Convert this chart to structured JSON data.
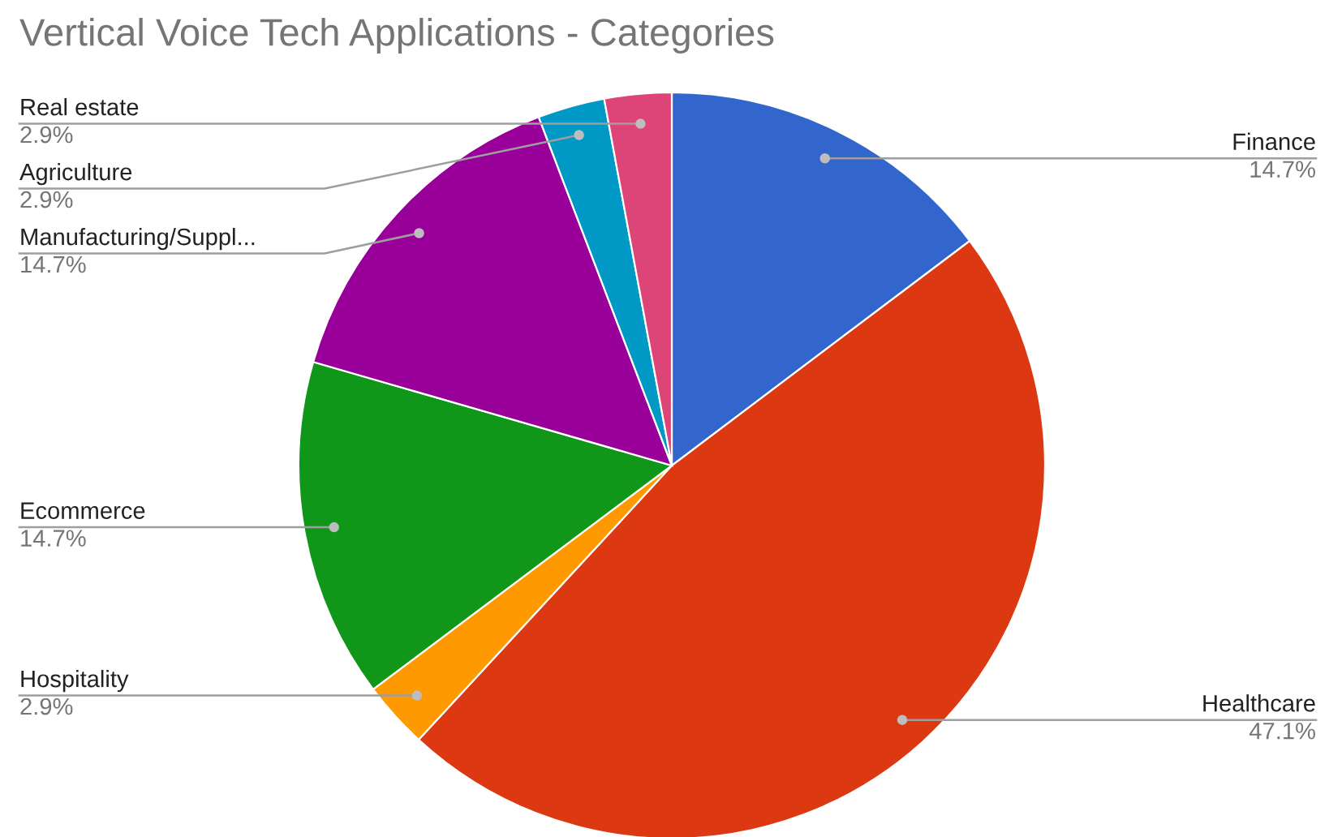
{
  "chart_data": {
    "type": "pie",
    "title": "Vertical Voice Tech Applications - Categories",
    "categories": [
      "Finance",
      "Healthcare",
      "Hospitality",
      "Ecommerce",
      "Manufacturing/Suppl...",
      "Agriculture",
      "Real estate"
    ],
    "values": [
      14.7,
      47.1,
      2.9,
      14.7,
      14.7,
      2.9,
      2.9
    ],
    "value_labels": [
      "14.7%",
      "47.1%",
      "2.9%",
      "14.7%",
      "14.7%",
      "2.9%",
      "2.9%"
    ],
    "colors": [
      "#3366cc",
      "#dc3912",
      "#ff9900",
      "#109618",
      "#990099",
      "#0099c6",
      "#dd4477"
    ],
    "legend": false
  }
}
